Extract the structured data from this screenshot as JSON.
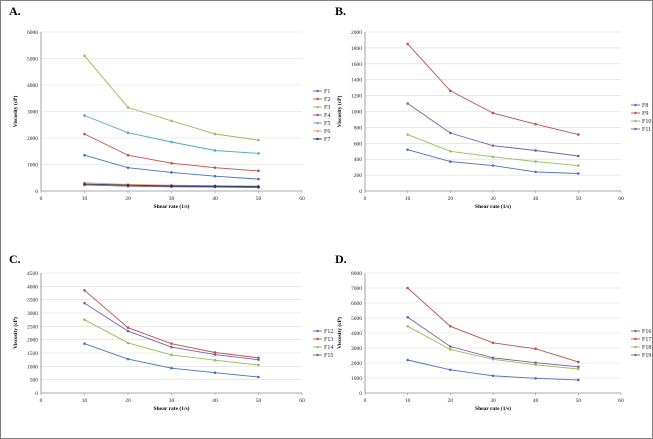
{
  "chart_data": [
    {
      "type": "line",
      "panel": "A.",
      "xlabel": "Shear rate (1/s)",
      "ylabel": "Viscosity (cP)",
      "xlim": [
        0,
        60
      ],
      "ylim": [
        0,
        6000
      ],
      "xticks": [
        0,
        10,
        20,
        30,
        40,
        50,
        60
      ],
      "yticks": [
        0,
        1000,
        2000,
        3000,
        4000,
        5000,
        6000
      ],
      "x": [
        10,
        20,
        30,
        40,
        50
      ],
      "legend_position": "right",
      "series": [
        {
          "name": "F1",
          "color": "#4472c4",
          "values": [
            1350,
            880,
            700,
            560,
            450
          ]
        },
        {
          "name": "F2",
          "color": "#c0504d",
          "values": [
            2150,
            1350,
            1050,
            880,
            760
          ]
        },
        {
          "name": "F3",
          "color": "#9bbb59",
          "values": [
            5100,
            3150,
            2650,
            2150,
            1920
          ]
        },
        {
          "name": "F4",
          "color": "#7b5ea7",
          "values": [
            230,
            180,
            160,
            150,
            130
          ]
        },
        {
          "name": "F5",
          "color": "#4bacc6",
          "values": [
            2850,
            2200,
            1850,
            1530,
            1420
          ]
        },
        {
          "name": "F6",
          "color": "#f79646",
          "values": [
            310,
            250,
            220,
            200,
            190
          ]
        },
        {
          "name": "F7",
          "color": "#203864",
          "values": [
            260,
            220,
            190,
            180,
            160
          ]
        }
      ]
    },
    {
      "type": "line",
      "panel": "B.",
      "xlabel": "Shear rate (1/s)",
      "ylabel": "Viscosity (cP)",
      "xlim": [
        0,
        60
      ],
      "ylim": [
        0,
        2000
      ],
      "xticks": [
        0,
        10,
        20,
        30,
        40,
        50,
        60
      ],
      "yticks": [
        0,
        200,
        400,
        600,
        800,
        1000,
        1200,
        1400,
        1600,
        1800,
        2000
      ],
      "x": [
        10,
        20,
        30,
        40,
        50
      ],
      "legend_position": "right",
      "series": [
        {
          "name": "F8",
          "color": "#4472c4",
          "values": [
            520,
            370,
            320,
            240,
            220
          ]
        },
        {
          "name": "F9",
          "color": "#c0504d",
          "values": [
            1850,
            1260,
            980,
            840,
            710
          ]
        },
        {
          "name": "F10",
          "color": "#9bbb59",
          "values": [
            710,
            500,
            430,
            370,
            320
          ]
        },
        {
          "name": "F11",
          "color": "#7b5ea7",
          "values": [
            1100,
            730,
            570,
            510,
            440
          ]
        }
      ]
    },
    {
      "type": "line",
      "panel": "C.",
      "xlabel": "Shear rate (1/s)",
      "ylabel": "Viscosity (cP)",
      "xlim": [
        0,
        60
      ],
      "ylim": [
        0,
        4500
      ],
      "xticks": [
        0,
        10,
        20,
        30,
        40,
        50,
        60
      ],
      "yticks": [
        0,
        500,
        1000,
        1500,
        2000,
        2500,
        3000,
        3500,
        4000,
        4500
      ],
      "x": [
        10,
        20,
        30,
        40,
        50
      ],
      "legend_position": "right",
      "series": [
        {
          "name": "F12",
          "color": "#4472c4",
          "values": [
            1850,
            1270,
            930,
            760,
            600
          ]
        },
        {
          "name": "F13",
          "color": "#c0504d",
          "values": [
            3850,
            2450,
            1850,
            1520,
            1320
          ]
        },
        {
          "name": "F14",
          "color": "#9bbb59",
          "values": [
            2750,
            1880,
            1430,
            1230,
            1050
          ]
        },
        {
          "name": "F15",
          "color": "#7b5ea7",
          "values": [
            3370,
            2320,
            1720,
            1440,
            1250
          ]
        }
      ]
    },
    {
      "type": "line",
      "panel": "D.",
      "xlabel": "Shear rate (1/s)",
      "ylabel": "Viscosity (cP)",
      "xlim": [
        0,
        60
      ],
      "ylim": [
        0,
        8000
      ],
      "xticks": [
        0,
        10,
        20,
        30,
        40,
        50,
        60
      ],
      "yticks": [
        0,
        1000,
        2000,
        3000,
        4000,
        5000,
        6000,
        7000,
        8000
      ],
      "x": [
        10,
        20,
        30,
        40,
        50
      ],
      "legend_position": "right",
      "series": [
        {
          "name": "F16",
          "color": "#4472c4",
          "values": [
            2200,
            1550,
            1150,
            980,
            870
          ]
        },
        {
          "name": "F17",
          "color": "#c0504d",
          "values": [
            7000,
            4450,
            3350,
            2950,
            2070
          ]
        },
        {
          "name": "F18",
          "color": "#9bbb59",
          "values": [
            4450,
            2900,
            2250,
            1880,
            1600
          ]
        },
        {
          "name": "F19",
          "color": "#7b5ea7",
          "values": [
            5050,
            3100,
            2350,
            2020,
            1750
          ]
        }
      ]
    }
  ]
}
